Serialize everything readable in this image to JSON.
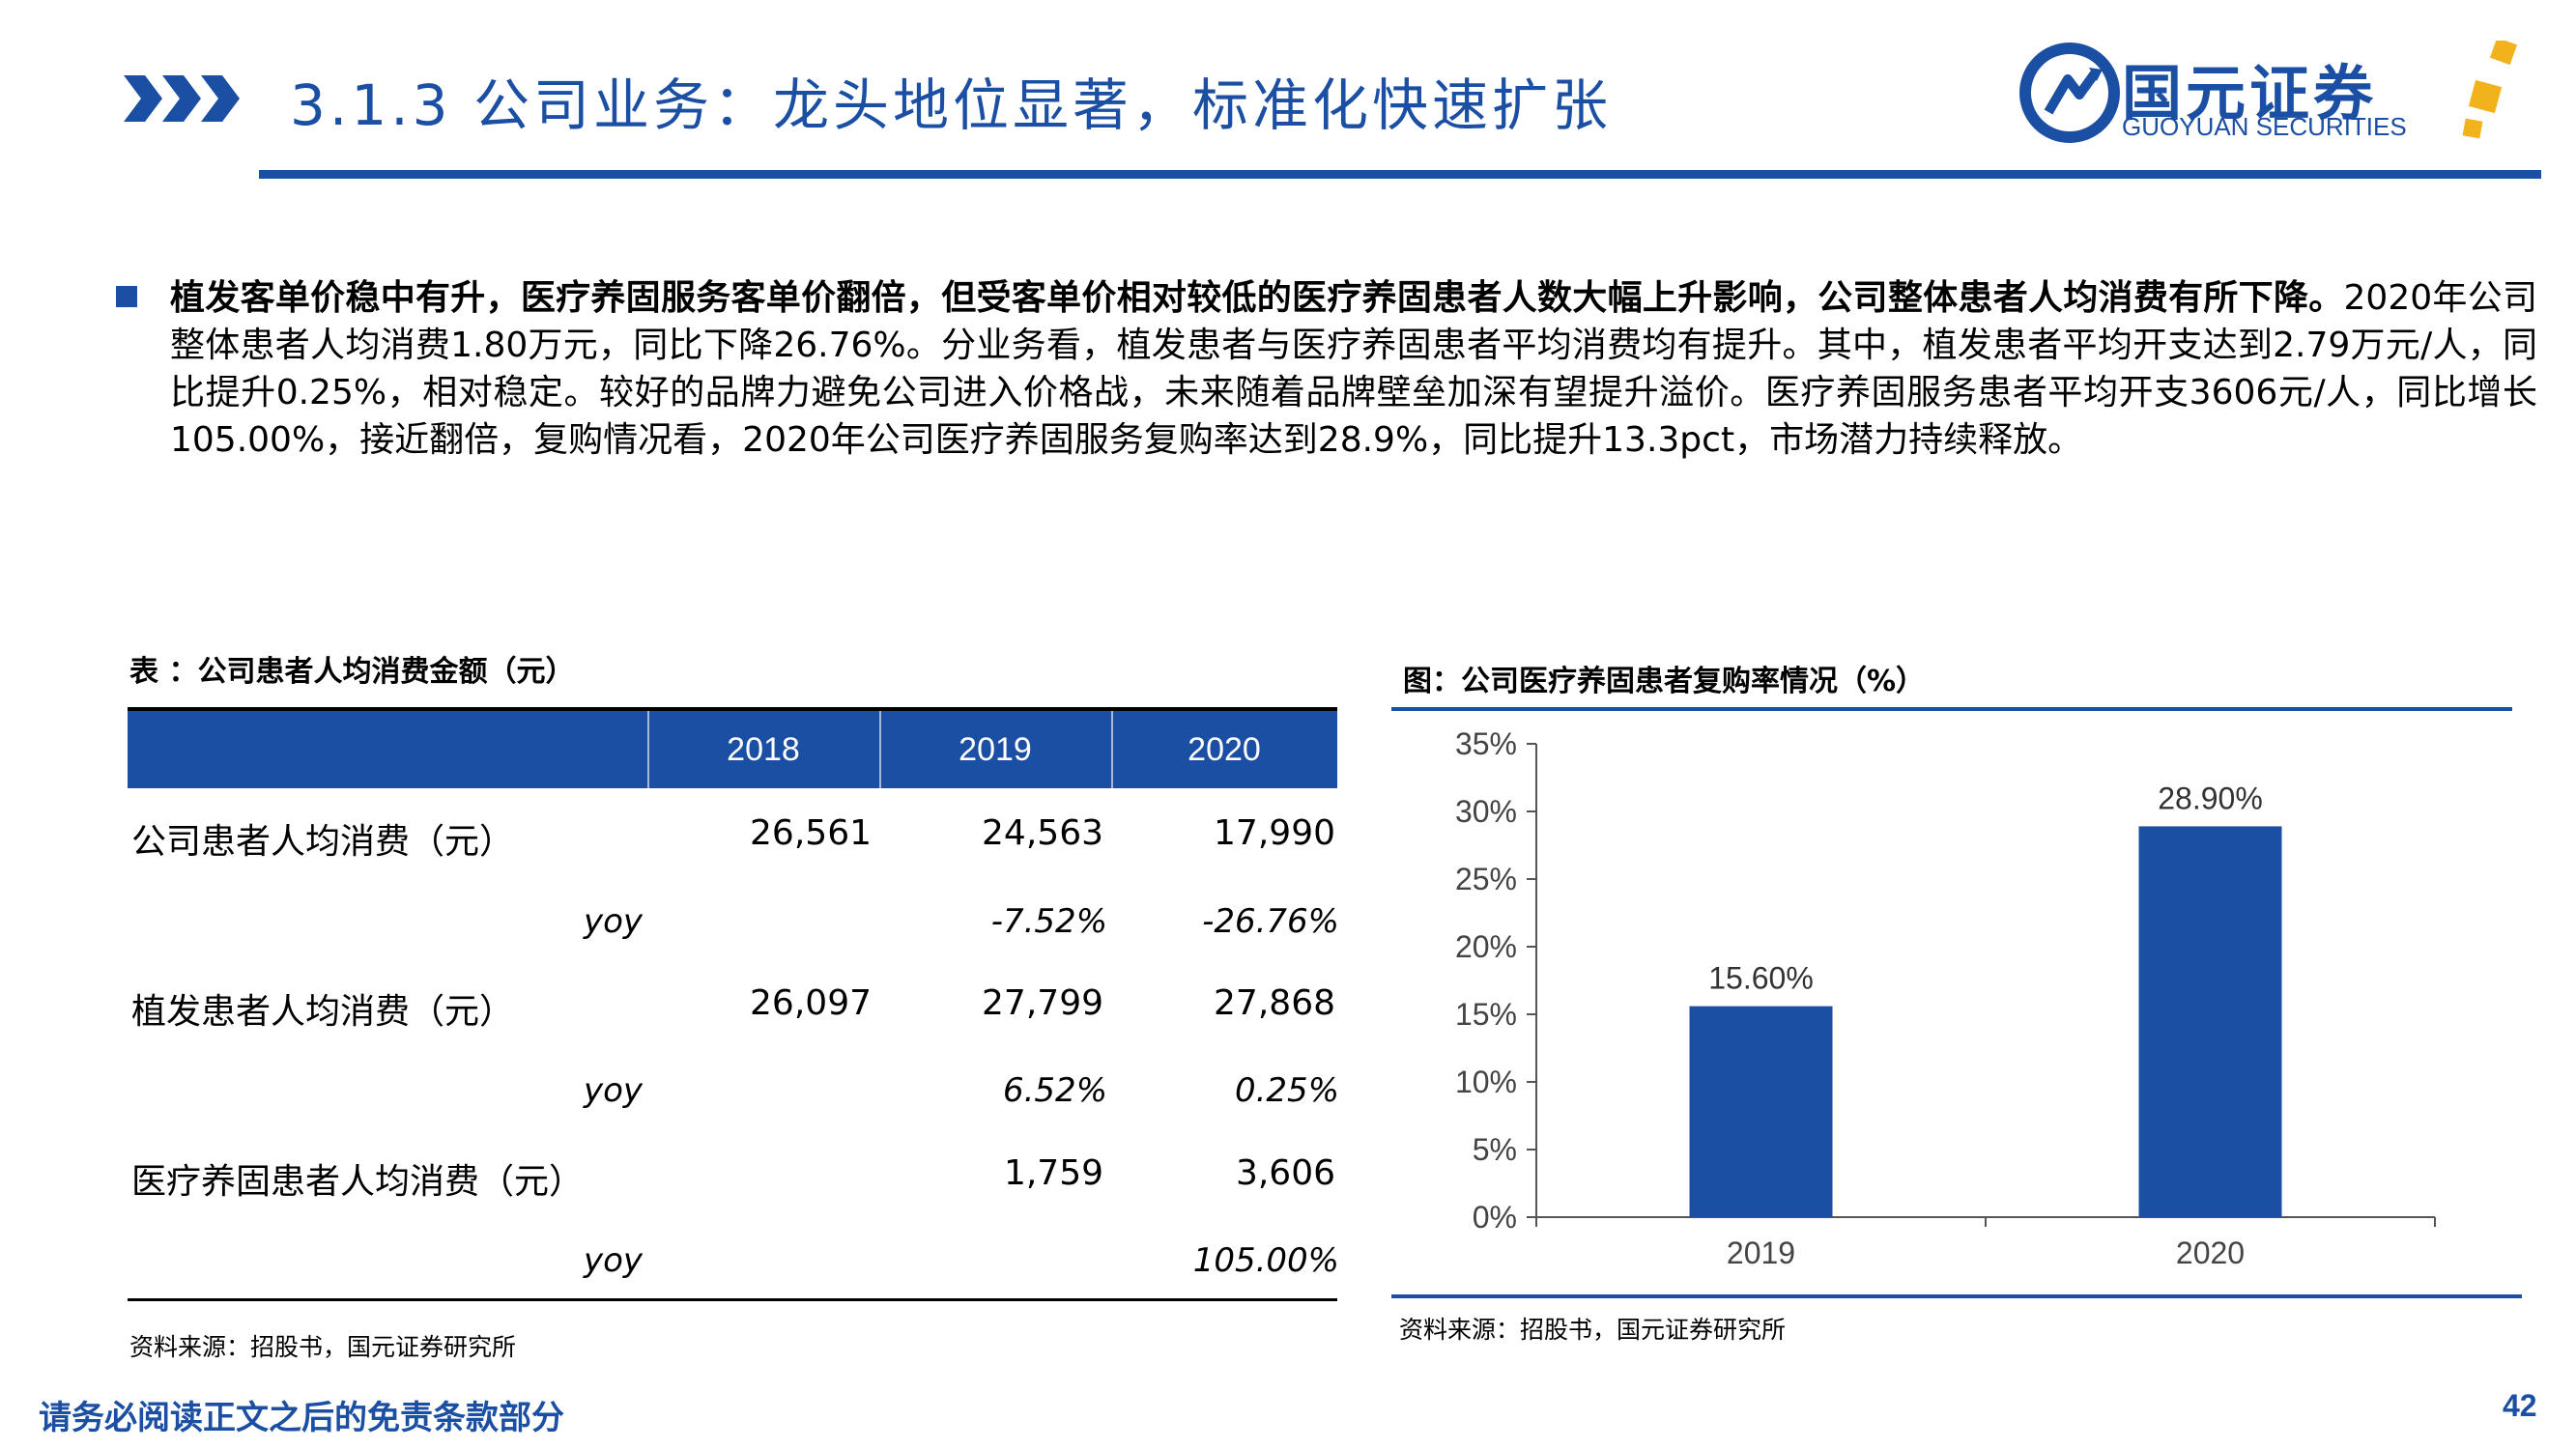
{
  "header": {
    "title": "3.1.3 公司业务：龙头地位显著，标准化快速扩张",
    "logo_cn": "国元证券",
    "logo_en": "GUOYUAN SECURITIES",
    "brand_color": "#1b4fa3",
    "accent_color": "#f2b21c"
  },
  "body": {
    "lead_bold": "植发客单价稳中有升，医疗养固服务客单价翻倍，但受客单价相对较低的医疗养固患者人数大幅上升影响，公司整体患者人均消费有所下降。",
    "detail": "2020年公司整体患者人均消费1.80万元，同比下降26.76%。分业务看，植发患者与医疗养固患者平均消费均有提升。其中，植发患者平均开支达到2.79万元/人，同比提升0.25%，相对稳定。较好的品牌力避免公司进入价格战，未来随着品牌壁垒加深有望提升溢价。医疗养固服务患者平均开支3606元/人，同比增长105.00%，接近翻倍，复购情况看，2020年公司医疗养固服务复购率达到28.9%，同比提升13.3pct，市场潜力持续释放。"
  },
  "table": {
    "title": "表 ：公司患者人均消费金额（元）",
    "columns": [
      "2018",
      "2019",
      "2020"
    ],
    "rows": [
      {
        "label": "公司患者人均消费（元）",
        "values": [
          "26,561",
          "24,563",
          "17,990"
        ]
      },
      {
        "label": "yoy",
        "values": [
          "",
          "-7.52%",
          "-26.76%"
        ]
      },
      {
        "label": "植发患者人均消费（元）",
        "values": [
          "26,097",
          "27,799",
          "27,868"
        ]
      },
      {
        "label": "yoy",
        "values": [
          "",
          "6.52%",
          "0.25%"
        ]
      },
      {
        "label": "医疗养固患者人均消费（元）",
        "values": [
          "",
          "1,759",
          "3,606"
        ]
      },
      {
        "label": "yoy",
        "values": [
          "",
          "",
          "105.00%"
        ]
      }
    ],
    "source": "资料来源：招股书，国元证券研究所"
  },
  "chart_data": {
    "type": "bar",
    "title": "图：公司医疗养固患者复购率情况（%）",
    "categories": [
      "2019",
      "2020"
    ],
    "values": [
      15.6,
      28.9
    ],
    "data_labels": [
      "15.60%",
      "28.90%"
    ],
    "yticks": [
      "0%",
      "5%",
      "10%",
      "15%",
      "20%",
      "25%",
      "30%",
      "35%"
    ],
    "ylim": [
      0,
      35
    ],
    "xlabel": "",
    "ylabel": "",
    "bar_color": "#1b4fa3",
    "source": "资料来源：招股书，国元证券研究所"
  },
  "footer": {
    "disclaimer": "请务必阅读正文之后的免责条款部分",
    "page": "42"
  }
}
